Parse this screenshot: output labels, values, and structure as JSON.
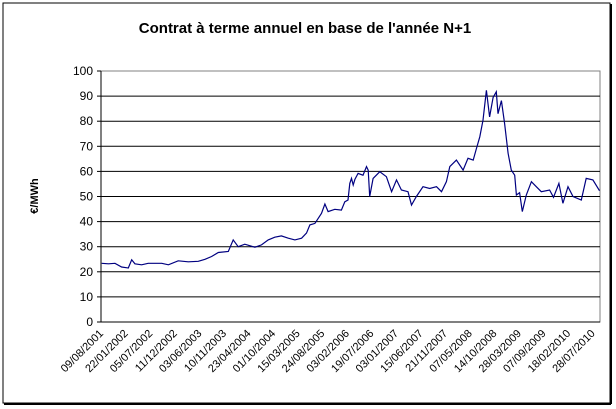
{
  "chart_data": {
    "type": "line",
    "title": "Contrat à terme annuel en base de l'année N+1",
    "xlabel": "",
    "ylabel": "€/MWh",
    "ylim": [
      0,
      100
    ],
    "yticks": [
      0,
      10,
      20,
      30,
      40,
      50,
      60,
      70,
      80,
      90,
      100
    ],
    "xlim": [
      0,
      20.3
    ],
    "grid": true,
    "legend": "none",
    "x_tick_labels": [
      "09/08/2001",
      "22/01/2002",
      "05/07/2002",
      "11/12/2002",
      "03/06/2003",
      "10/11/2003",
      "23/04/2004",
      "01/10/2004",
      "15/03/2005",
      "24/08/2005",
      "03/02/2006",
      "19/07/2006",
      "03/01/2007",
      "15/06/2007",
      "21/11/2007",
      "07/05/2008",
      "14/10/2008",
      "28/03/2009",
      "07/09/2009",
      "18/02/2010",
      "28/07/2010"
    ],
    "series": [
      {
        "name": "€/MWh",
        "color": "#000080",
        "x": [
          0.03,
          0.3,
          0.57,
          0.84,
          1.11,
          1.25,
          1.38,
          1.65,
          1.92,
          2.47,
          2.74,
          3.14,
          3.55,
          3.96,
          4.23,
          4.5,
          4.77,
          5.18,
          5.38,
          5.58,
          5.85,
          6.26,
          6.53,
          6.8,
          7.07,
          7.34,
          7.62,
          7.89,
          8.16,
          8.36,
          8.5,
          8.7,
          8.97,
          9.11,
          9.24,
          9.51,
          9.78,
          9.92,
          10.05,
          10.12,
          10.19,
          10.26,
          10.33,
          10.46,
          10.66,
          10.8,
          10.87,
          10.93,
          11.07,
          11.34,
          11.61,
          11.82,
          12.02,
          12.22,
          12.49,
          12.63,
          12.83,
          13.1,
          13.37,
          13.65,
          13.85,
          14.05,
          14.19,
          14.46,
          14.73,
          14.93,
          15.14,
          15.27,
          15.41,
          15.54,
          15.68,
          15.81,
          15.95,
          16.08,
          16.15,
          16.29,
          16.42,
          16.56,
          16.69,
          16.83,
          16.9,
          17.03,
          17.14,
          17.3,
          17.51,
          17.71,
          17.91,
          18.25,
          18.41,
          18.63,
          18.79,
          19.0,
          19.2,
          19.54,
          19.74,
          20.01,
          20.28
        ],
        "y": [
          23.4,
          23.2,
          23.4,
          21.9,
          21.5,
          24.8,
          23.2,
          22.8,
          23.4,
          23.4,
          22.8,
          24.4,
          24.0,
          24.2,
          25.0,
          26.1,
          27.7,
          28.1,
          32.7,
          30.0,
          31.0,
          29.8,
          30.7,
          32.7,
          33.8,
          34.3,
          33.4,
          32.7,
          33.4,
          35.4,
          38.7,
          39.3,
          43.3,
          47.0,
          44.0,
          44.9,
          44.6,
          47.9,
          48.6,
          55.2,
          57.2,
          54.6,
          56.8,
          59.2,
          58.5,
          61.9,
          60.5,
          50.0,
          57.2,
          59.9,
          57.9,
          51.9,
          56.6,
          52.6,
          51.9,
          46.6,
          50.0,
          53.9,
          53.2,
          53.9,
          51.9,
          55.9,
          61.9,
          64.5,
          60.5,
          65.2,
          64.5,
          69.1,
          73.8,
          80.4,
          92.3,
          81.7,
          89.5,
          91.7,
          83.0,
          88.2,
          79.1,
          67.2,
          60.5,
          58.5,
          50.6,
          51.5,
          44.0,
          50.6,
          55.9,
          53.9,
          51.9,
          52.6,
          49.7,
          55.2,
          47.3,
          53.9,
          50.0,
          48.6,
          57.2,
          56.6,
          52.3
        ]
      }
    ]
  }
}
